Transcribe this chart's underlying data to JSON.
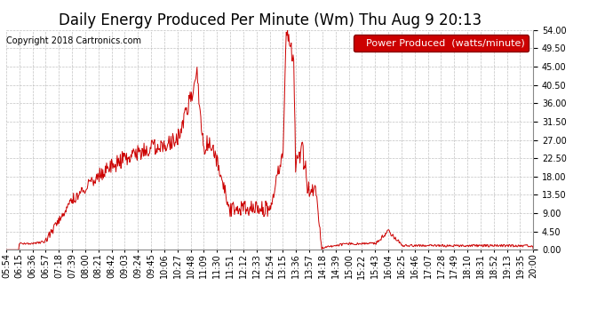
{
  "title": "Daily Energy Produced Per Minute (Wm) Thu Aug 9 20:13",
  "copyright": "Copyright 2018 Cartronics.com",
  "legend_label": "Power Produced  (watts/minute)",
  "line_color": "#cc0000",
  "legend_bg": "#cc0000",
  "legend_text_color": "#ffffff",
  "bg_color": "#ffffff",
  "grid_color": "#bbbbbb",
  "ylim": [
    0,
    54.0
  ],
  "yticks": [
    0.0,
    4.5,
    9.0,
    13.5,
    18.0,
    22.5,
    27.0,
    31.5,
    36.0,
    40.5,
    45.0,
    49.5,
    54.0
  ],
  "x_labels": [
    "05:54",
    "06:15",
    "06:36",
    "06:57",
    "07:18",
    "07:39",
    "08:00",
    "08:21",
    "08:42",
    "09:03",
    "09:24",
    "09:45",
    "10:06",
    "10:27",
    "10:48",
    "11:09",
    "11:30",
    "11:51",
    "12:12",
    "12:33",
    "12:54",
    "13:15",
    "13:36",
    "13:57",
    "14:18",
    "14:39",
    "15:00",
    "15:22",
    "15:43",
    "16:04",
    "16:25",
    "16:46",
    "17:07",
    "17:28",
    "17:49",
    "18:10",
    "18:31",
    "18:52",
    "19:13",
    "19:35",
    "20:00"
  ],
  "title_fontsize": 12,
  "tick_fontsize": 7,
  "copyright_fontsize": 7,
  "legend_fontsize": 8
}
